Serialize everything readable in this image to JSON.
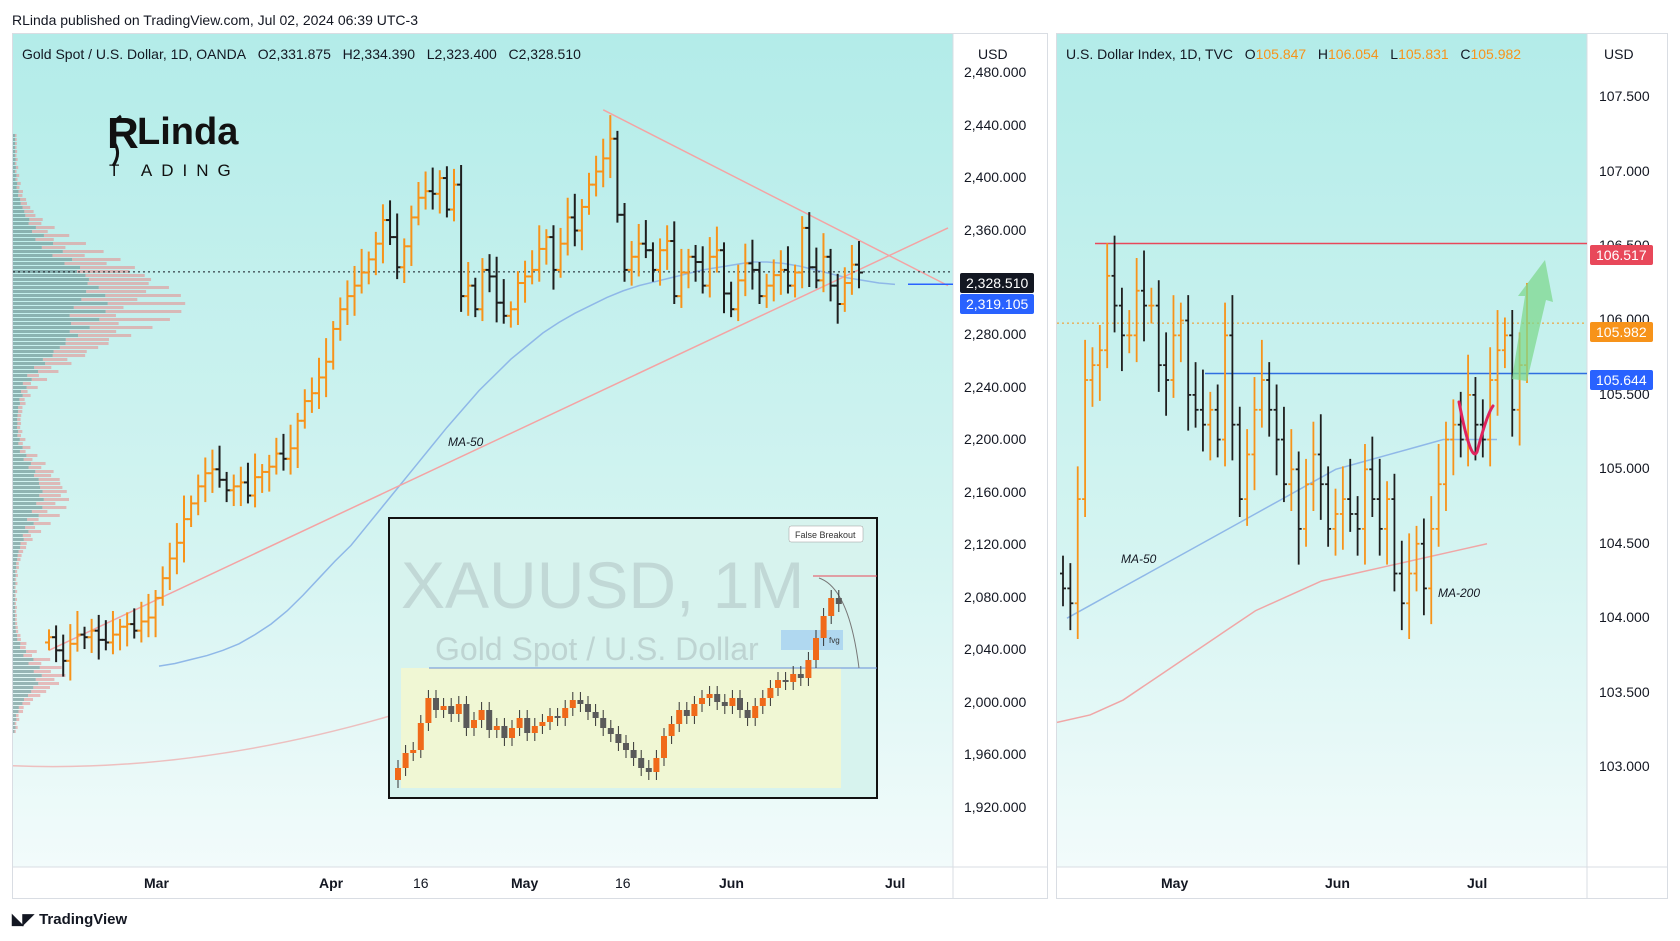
{
  "header": {
    "attribution": "RLinda published on TradingView.com, Jul 02, 2024 06:39 UTC-3"
  },
  "footer": {
    "brand": "TradingView",
    "brand_icon": "tradingview-logo-icon"
  },
  "colors": {
    "background": "#b8eeec",
    "bull": "#f7931a",
    "bear": "#1e1e1e",
    "ma50": "#8fb8e8",
    "ma200": "#f0a6a6",
    "trendline": "#f4a3a3",
    "resistance": "#e8485a",
    "support": "#2f6fe0"
  },
  "left_chart": {
    "legend": {
      "symbol": "Gold Spot / U.S. Dollar, 1D, OANDA",
      "o_label": "O",
      "o": "2,331.875",
      "h_label": "H",
      "h": "2,334.390",
      "l_label": "L",
      "l": "2,323.400",
      "c_label": "C",
      "c": "2,328.510"
    },
    "currency": "USD",
    "last_price": "2,328.510",
    "ma_price": "2,319.105",
    "ma_label": "MA-50",
    "logo_text_1": "RLinda",
    "logo_text_2": "TRADING",
    "inset": {
      "watermark_symbol": "XAUUSD, 1M",
      "watermark_name": "Gold Spot / U.S. Dollar",
      "false_breakout_label": "False Breakout",
      "fvg_label": "fvg"
    }
  },
  "right_chart": {
    "legend": {
      "symbol": "U.S. Dollar Index, 1D, TVC",
      "o_label": "O",
      "o": "105.847",
      "h_label": "H",
      "h": "106.054",
      "l_label": "L",
      "l": "105.831",
      "c_label": "C",
      "c": "105.982"
    },
    "currency": "USD",
    "resistance_price": "106.517",
    "close_price": "105.982",
    "support_price": "105.644",
    "ma50_label": "MA-50",
    "ma200_label": "MA-200"
  },
  "chart_data": [
    {
      "type": "ohlc",
      "title": "Gold Spot / U.S. Dollar, 1D, OANDA",
      "y_ticks": [
        "2,480.000",
        "2,440.000",
        "2,400.000",
        "2,360.000",
        "2,320.000",
        "2,280.000",
        "2,240.000",
        "2,200.000",
        "2,160.000",
        "2,120.000",
        "2,080.000",
        "2,040.000",
        "2,000.000",
        "1,960.000",
        "1,920.000"
      ],
      "x_ticks": [
        "Mar",
        "Apr",
        "16",
        "May",
        "16",
        "Jun",
        "Jul"
      ],
      "ylim": [
        1900,
        2490
      ],
      "closes": [
        2050,
        2040,
        2032,
        2045,
        2052,
        2050,
        2055,
        2048,
        2046,
        2052,
        2058,
        2060,
        2055,
        2062,
        2065,
        2080,
        2095,
        2110,
        2122,
        2140,
        2152,
        2165,
        2175,
        2178,
        2170,
        2162,
        2165,
        2168,
        2158,
        2172,
        2176,
        2180,
        2190,
        2186,
        2194,
        2215,
        2230,
        2236,
        2248,
        2260,
        2285,
        2300,
        2310,
        2318,
        2328,
        2338,
        2350,
        2368,
        2355,
        2332,
        2348,
        2370,
        2385,
        2390,
        2388,
        2400,
        2376,
        2395,
        2310,
        2318,
        2300,
        2330,
        2325,
        2305,
        2295,
        2300,
        2320,
        2325,
        2330,
        2346,
        2355,
        2330,
        2350,
        2370,
        2360,
        2378,
        2395,
        2405,
        2415,
        2430,
        2372,
        2330,
        2340,
        2350,
        2345,
        2330,
        2345,
        2352,
        2310,
        2328,
        2340,
        2336,
        2318,
        2340,
        2345,
        2312,
        2300,
        2322,
        2335,
        2330,
        2310,
        2318,
        2326,
        2330,
        2318,
        2328,
        2362,
        2332,
        2322,
        2340,
        2318,
        2304,
        2320,
        2334,
        2328
      ],
      "last_close": 2328.51,
      "ma50": [
        2028,
        2030,
        2033,
        2036,
        2040,
        2045,
        2052,
        2060,
        2070,
        2082,
        2095,
        2108,
        2120,
        2135,
        2150,
        2165,
        2180,
        2195,
        2210,
        2224,
        2238,
        2250,
        2262,
        2272,
        2282,
        2290,
        2297,
        2303,
        2309,
        2314,
        2318,
        2321,
        2324,
        2327,
        2330,
        2332,
        2334,
        2336,
        2336,
        2335,
        2333,
        2330,
        2327,
        2324,
        2322,
        2320,
        2319
      ],
      "trendlines": [
        {
          "from": [
            0,
            2040
          ],
          "to": [
            114,
            2358
          ]
        },
        {
          "from": [
            78,
            2452
          ],
          "to": [
            114,
            2330
          ]
        }
      ]
    },
    {
      "type": "ohlc",
      "title": "U.S. Dollar Index, 1D, TVC",
      "y_ticks": [
        "107.500",
        "107.000",
        "106.500",
        "106.000",
        "105.500",
        "105.000",
        "104.500",
        "104.000",
        "103.500",
        "103.000"
      ],
      "x_ticks": [
        "May",
        "Jun",
        "Jul"
      ],
      "ylim": [
        102.55,
        107.75
      ],
      "closes": [
        104.2,
        104.1,
        104.8,
        105.6,
        105.7,
        105.8,
        106.3,
        106.1,
        105.9,
        105.9,
        106.2,
        106.1,
        106.1,
        105.7,
        105.6,
        105.9,
        106.0,
        105.5,
        105.4,
        105.3,
        105.4,
        105.2,
        105.9,
        105.3,
        104.8,
        105.1,
        105.4,
        105.6,
        105.4,
        105.2,
        104.9,
        105.0,
        104.6,
        104.9,
        105.1,
        104.9,
        104.6,
        104.7,
        104.8,
        104.7,
        104.6,
        105.0,
        104.8,
        104.6,
        104.8,
        104.3,
        104.1,
        104.3,
        104.5,
        104.2,
        104.6,
        104.9,
        105.2,
        105.3,
        105.2,
        105.5,
        105.3,
        105.2,
        105.6,
        105.8,
        105.9,
        105.4,
        105.7,
        105.982
      ],
      "ma50": [
        104.0,
        104.1,
        104.2,
        104.3,
        104.4,
        104.5,
        104.6,
        104.7,
        104.8,
        104.9,
        105.0,
        105.05,
        105.1,
        105.15,
        105.2,
        105.2,
        105.2
      ],
      "ma200": [
        103.3,
        103.35,
        103.45,
        103.6,
        103.75,
        103.9,
        104.05,
        104.15,
        104.25,
        104.3,
        104.35,
        104.4,
        104.45,
        104.5
      ],
      "resistance": 106.517,
      "support": 105.644
    }
  ]
}
